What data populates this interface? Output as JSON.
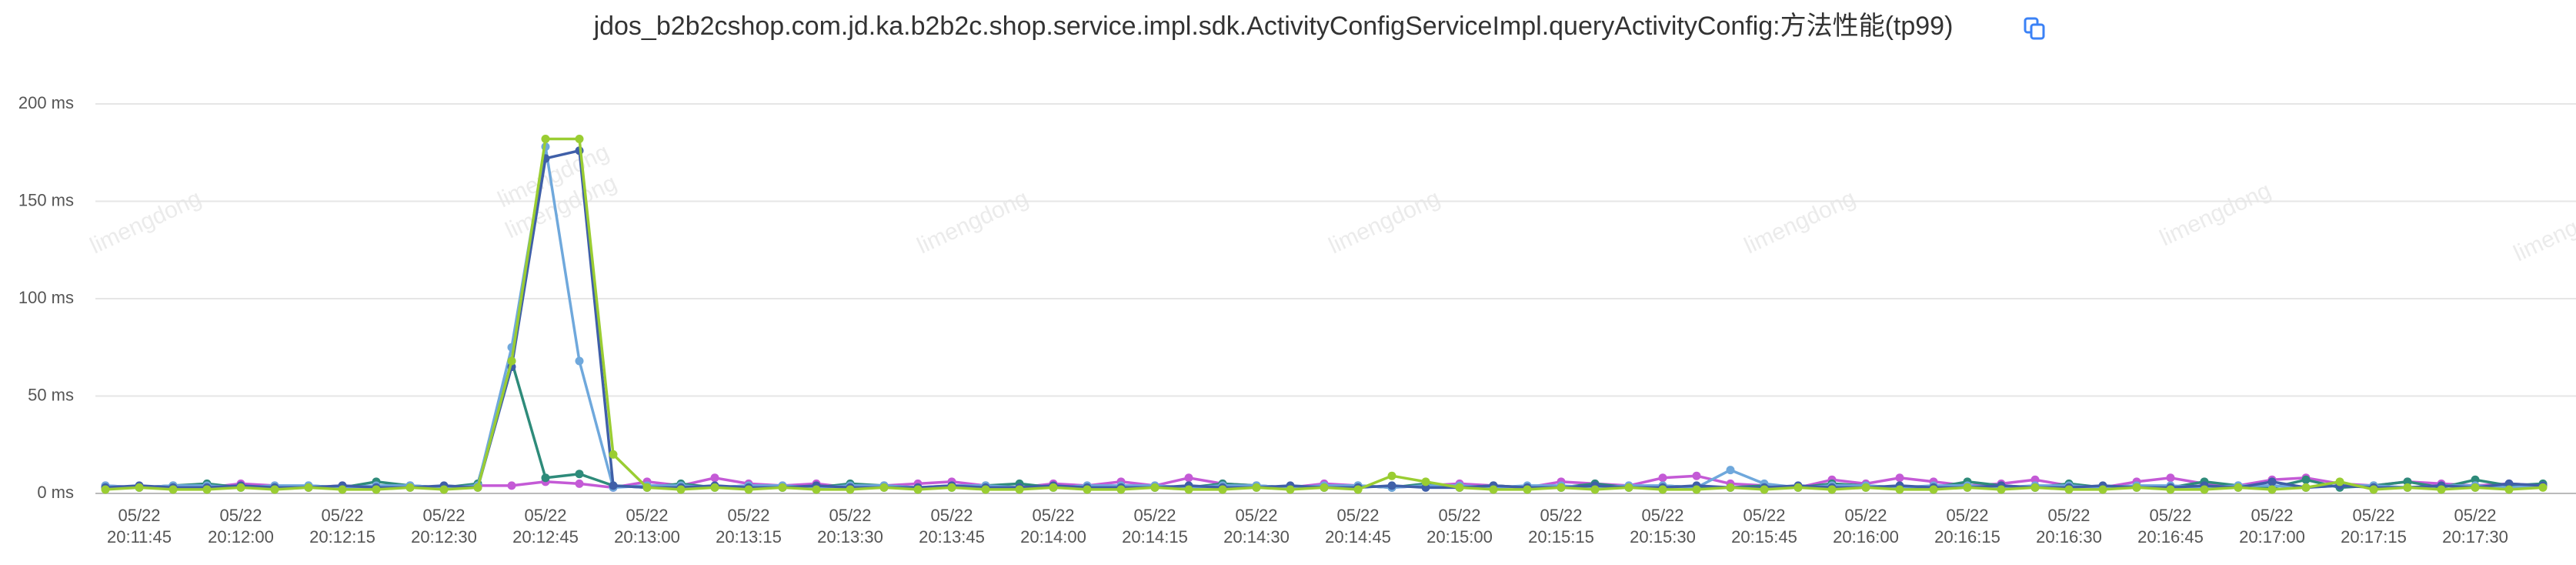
{
  "chart_data": {
    "type": "line",
    "title": "jdos_b2b2cshop.com.jd.ka.b2b2c.shop.service.impl.sdk.ActivityConfigServiceImpl.queryActivityConfig:方法性能(tp99)",
    "watermark": "limengdong",
    "categories": [
      null,
      "05/22\n20:11:45",
      null,
      null,
      "05/22\n20:12:00",
      null,
      null,
      "05/22\n20:12:15",
      null,
      null,
      "05/22\n20:12:30",
      null,
      null,
      "05/22\n20:12:45",
      null,
      null,
      "05/22\n20:13:00",
      null,
      null,
      "05/22\n20:13:15",
      null,
      null,
      "05/22\n20:13:30",
      null,
      null,
      "05/22\n20:13:45",
      null,
      null,
      "05/22\n20:14:00",
      null,
      null,
      "05/22\n20:14:15",
      null,
      null,
      "05/22\n20:14:30",
      null,
      null,
      "05/22\n20:14:45",
      null,
      null,
      "05/22\n20:15:00",
      null,
      null,
      "05/22\n20:15:15",
      null,
      null,
      "05/22\n20:15:30",
      null,
      null,
      "05/22\n20:15:45",
      null,
      null,
      "05/22\n20:16:00",
      null,
      null,
      "05/22\n20:16:15",
      null,
      null,
      "05/22\n20:16:30",
      null,
      null,
      "05/22\n20:16:45",
      null,
      null,
      "05/22\n20:17:00",
      null,
      null,
      "05/22\n20:17:15",
      null,
      null,
      "05/22\n20:17:30",
      null,
      null
    ],
    "series": [
      {
        "color": "#c45ad6",
        "values": [
          4,
          3,
          4,
          3,
          5,
          4,
          3,
          4,
          3,
          4,
          3,
          4,
          4,
          6,
          5,
          3,
          6,
          4,
          8,
          5,
          4,
          5,
          3,
          4,
          5,
          6,
          4,
          3,
          5,
          4,
          6,
          4,
          8,
          5,
          4,
          3,
          5,
          4,
          3,
          4,
          5,
          4,
          3,
          6,
          5,
          4,
          8,
          9,
          5,
          4,
          3,
          7,
          5,
          8,
          6,
          4,
          5,
          7,
          4,
          3,
          6,
          8,
          5,
          4,
          7,
          8,
          5,
          4,
          6,
          5,
          4,
          5,
          4
        ]
      },
      {
        "color": "#2e8b7a",
        "values": [
          3,
          3,
          4,
          5,
          3,
          3,
          4,
          3,
          6,
          4,
          3,
          5,
          68,
          8,
          10,
          4,
          3,
          5,
          3,
          4,
          3,
          3,
          5,
          4,
          3,
          3,
          4,
          5,
          3,
          3,
          4,
          3,
          3,
          5,
          4,
          3,
          3,
          4,
          3,
          5,
          3,
          4,
          3,
          3,
          5,
          3,
          4,
          3,
          3,
          4,
          3,
          5,
          4,
          3,
          3,
          6,
          4,
          3,
          5,
          3,
          4,
          3,
          6,
          4,
          3,
          7,
          3,
          4,
          6,
          3,
          7,
          4,
          5
        ]
      },
      {
        "color": "#6fa8dc",
        "values": [
          4,
          3,
          4,
          4,
          3,
          4,
          4,
          3,
          4,
          4,
          3,
          4,
          75,
          178,
          68,
          3,
          4,
          4,
          3,
          4,
          4,
          3,
          4,
          4,
          3,
          4,
          4,
          3,
          3,
          4,
          4,
          4,
          3,
          4,
          4,
          3,
          4,
          4,
          3,
          4,
          4,
          3,
          4,
          4,
          3,
          4,
          4,
          3,
          12,
          5,
          3,
          4,
          4,
          3,
          4,
          4,
          3,
          4,
          4,
          3,
          4,
          4,
          3,
          4,
          4,
          3,
          4,
          4,
          3,
          4,
          4,
          3,
          4
        ]
      },
      {
        "color": "#3f5fa8",
        "values": [
          3,
          4,
          3,
          3,
          4,
          3,
          3,
          4,
          3,
          3,
          4,
          3,
          65,
          172,
          176,
          4,
          3,
          3,
          4,
          3,
          3,
          4,
          3,
          3,
          3,
          4,
          3,
          3,
          4,
          3,
          3,
          3,
          4,
          3,
          3,
          4,
          3,
          3,
          4,
          3,
          3,
          4,
          3,
          3,
          4,
          3,
          3,
          4,
          3,
          3,
          4,
          3,
          3,
          4,
          3,
          3,
          4,
          3,
          3,
          4,
          3,
          3,
          4,
          3,
          6,
          3,
          4,
          3,
          3,
          4,
          3,
          5,
          4
        ]
      },
      {
        "color": "#9acd32",
        "values": [
          2,
          3,
          2,
          2,
          3,
          2,
          3,
          2,
          2,
          3,
          2,
          3,
          68,
          182,
          182,
          20,
          3,
          2,
          3,
          2,
          3,
          2,
          2,
          3,
          2,
          3,
          2,
          2,
          3,
          2,
          2,
          3,
          2,
          2,
          3,
          2,
          3,
          2,
          9,
          6,
          3,
          2,
          2,
          3,
          2,
          3,
          2,
          2,
          3,
          2,
          3,
          2,
          3,
          2,
          2,
          3,
          2,
          3,
          2,
          2,
          3,
          2,
          2,
          3,
          2,
          3,
          6,
          2,
          3,
          2,
          3,
          2,
          3
        ]
      }
    ],
    "ylim": [
      0,
      200
    ],
    "yticks": [
      {
        "value": 0,
        "label": "0 ms"
      },
      {
        "value": 50,
        "label": "50 ms"
      },
      {
        "value": 100,
        "label": "100 ms"
      },
      {
        "value": 150,
        "label": "150 ms"
      },
      {
        "value": 200,
        "label": "200 ms"
      }
    ],
    "grid": true
  }
}
